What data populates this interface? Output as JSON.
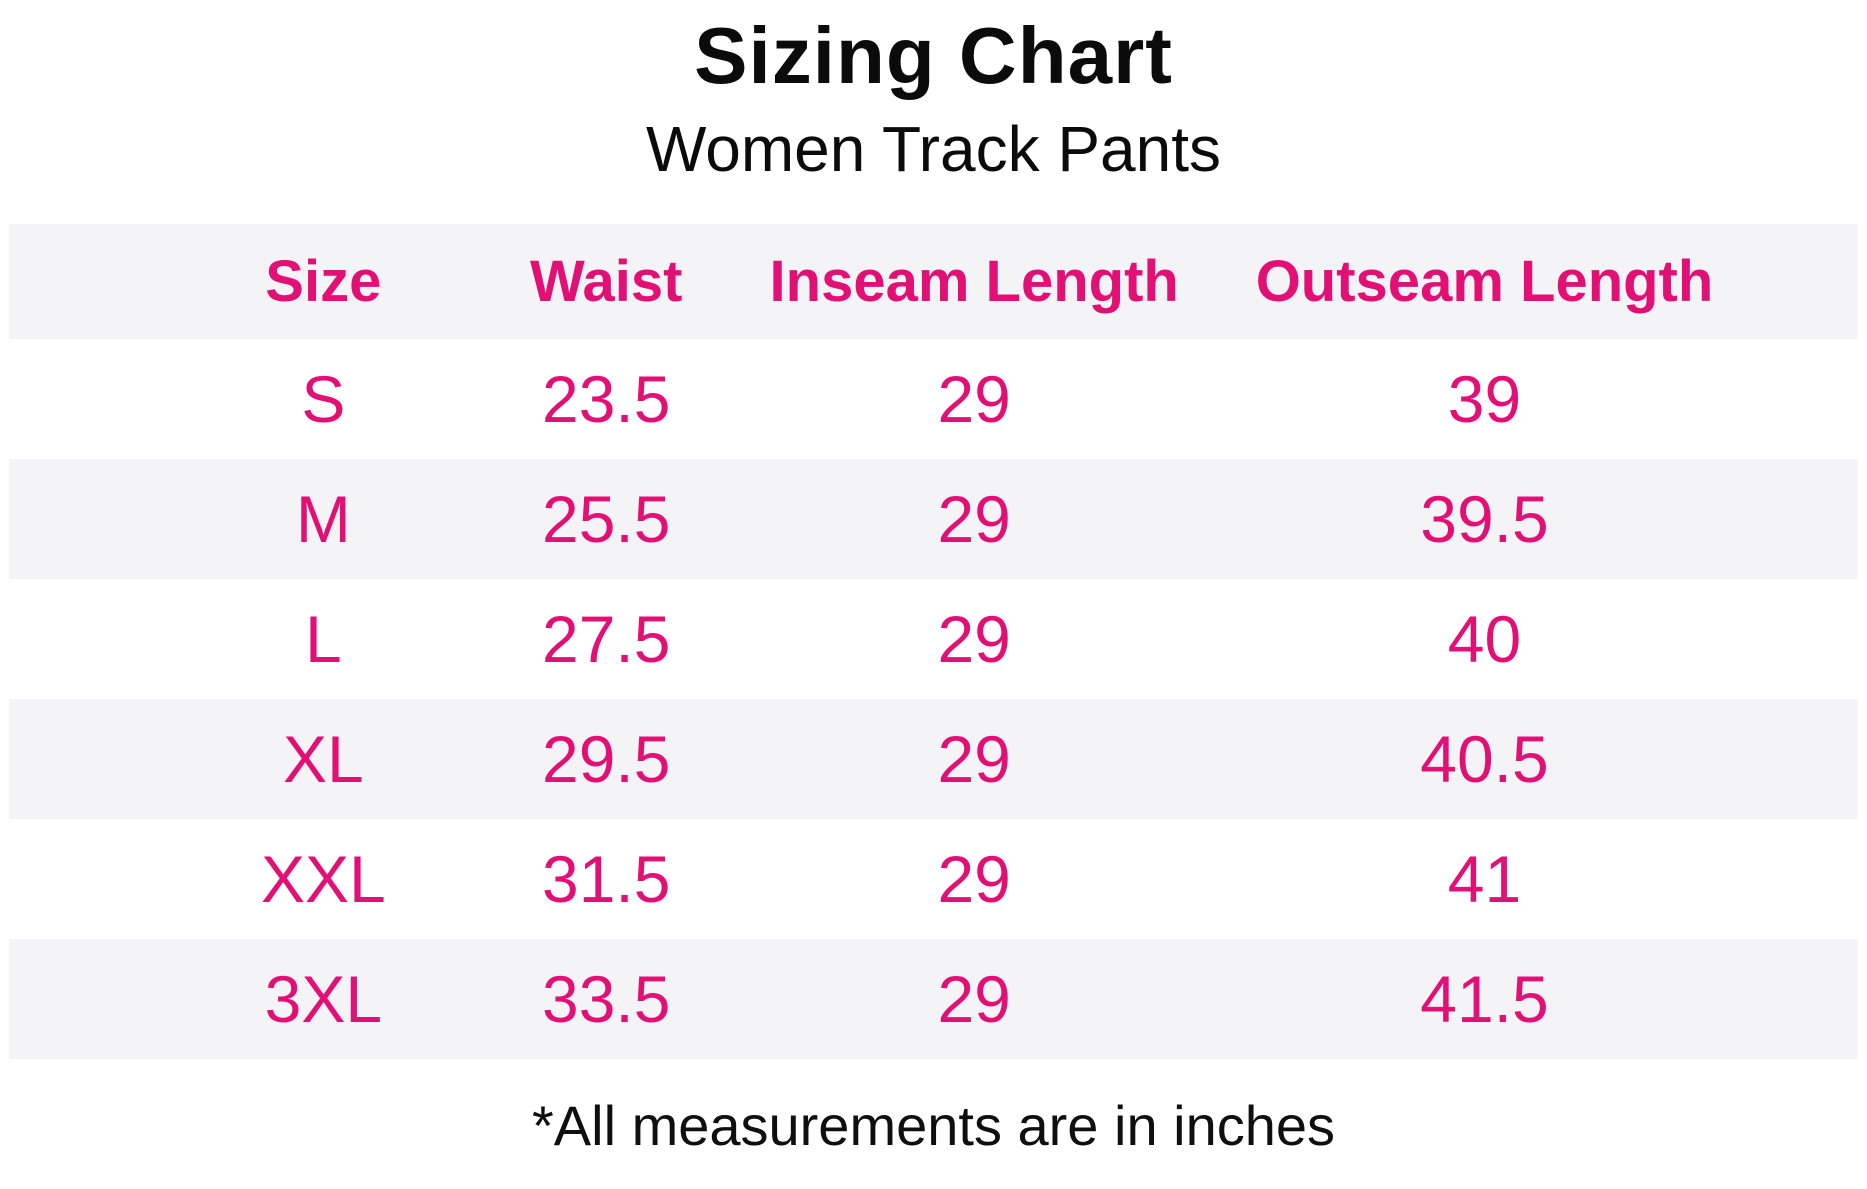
{
  "title": "Sizing Chart",
  "subtitle": "Women Track Pants",
  "footnote": "*All measurements are in inches",
  "colors": {
    "accent_pink": "#e20f75",
    "stripe_gray": "#f4f4f6",
    "text_black": "#0f0f0f"
  },
  "table": {
    "columns": [
      "Size",
      "Waist",
      "Inseam Length",
      "Outseam Length"
    ],
    "rows": [
      [
        "S",
        "23.5",
        "29",
        "39"
      ],
      [
        "M",
        "25.5",
        "29",
        "39.5"
      ],
      [
        "L",
        "27.5",
        "29",
        "40"
      ],
      [
        "XL",
        "29.5",
        "29",
        "40.5"
      ],
      [
        "XXL",
        "31.5",
        "29",
        "41"
      ],
      [
        "3XL",
        "33.5",
        "29",
        "41.5"
      ]
    ]
  },
  "chart_data": {
    "type": "table",
    "title": "Sizing Chart",
    "subtitle": "Women Track Pants",
    "columns": [
      "Size",
      "Waist",
      "Inseam Length",
      "Outseam Length"
    ],
    "rows": [
      [
        "S",
        23.5,
        29,
        39
      ],
      [
        "M",
        25.5,
        29,
        39.5
      ],
      [
        "L",
        27.5,
        29,
        40
      ],
      [
        "XL",
        29.5,
        29,
        40.5
      ],
      [
        "XXL",
        31.5,
        29,
        41
      ],
      [
        "3XL",
        33.5,
        29,
        41.5
      ]
    ],
    "note": "*All measurements are in inches",
    "units": "inches",
    "layout": {
      "striped_rows": true,
      "header_background": "#f4f4f6",
      "stripe_background": "#f4f4f6",
      "text_color": "#e20f75"
    }
  }
}
